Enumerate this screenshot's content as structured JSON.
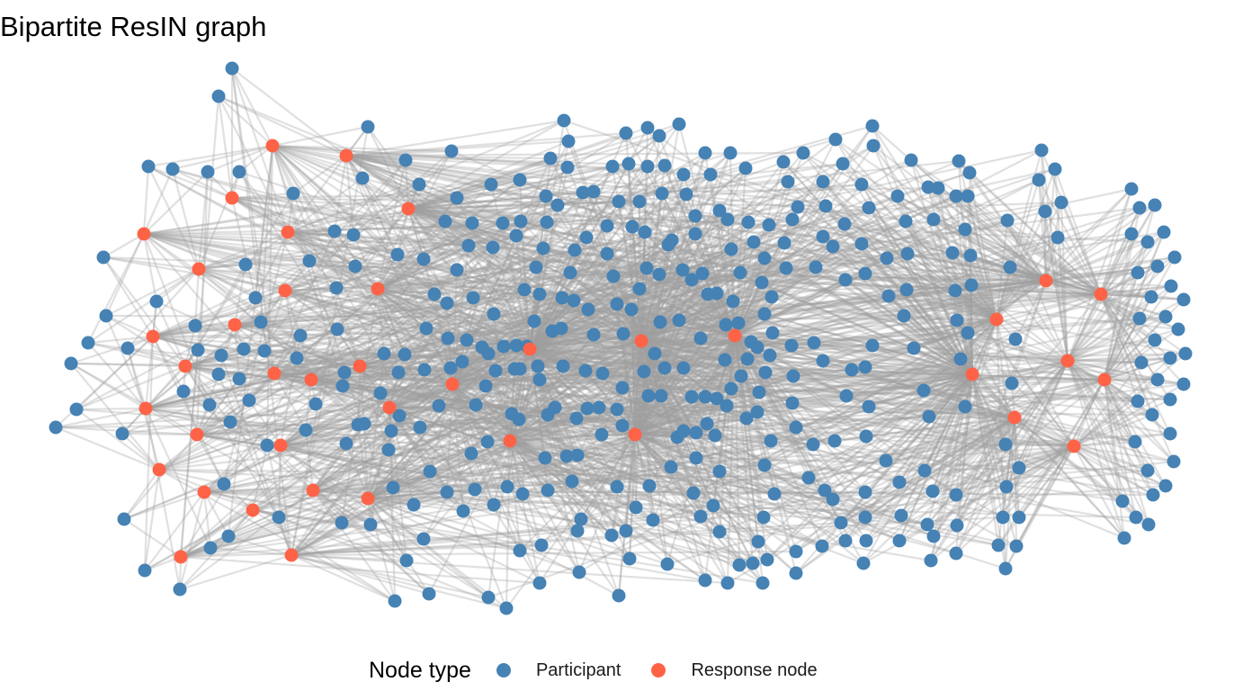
{
  "title": "Bipartite ResIN graph",
  "legend": {
    "title": "Node type",
    "items": [
      {
        "label": "Participant",
        "color": "#4682B4"
      },
      {
        "label": "Response node",
        "color": "#FF6347"
      }
    ]
  },
  "colors": {
    "participant": "#4682B4",
    "response": "#FF6347",
    "edge": "#A0A0A0"
  }
}
